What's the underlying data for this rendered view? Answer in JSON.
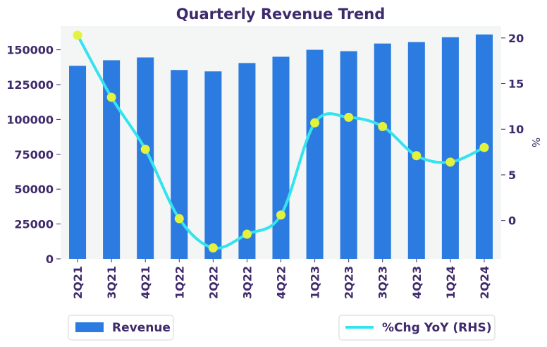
{
  "chart_data": {
    "type": "bar",
    "title": "Quarterly Revenue Trend",
    "categories": [
      "2Q21",
      "3Q21",
      "4Q21",
      "1Q22",
      "2Q22",
      "3Q22",
      "4Q22",
      "1Q23",
      "2Q23",
      "3Q23",
      "4Q23",
      "1Q24",
      "2Q24"
    ],
    "series": [
      {
        "name": "Revenue",
        "type": "bar",
        "axis": "left",
        "values": [
          138500,
          142500,
          144500,
          135500,
          134500,
          140500,
          145000,
          150000,
          149000,
          154500,
          155500,
          159000,
          161000
        ]
      },
      {
        "name": "%Chg YoY (RHS)",
        "type": "line",
        "axis": "right",
        "values": [
          20.3,
          13.5,
          7.8,
          0.2,
          -3.0,
          -1.5,
          0.6,
          10.7,
          11.3,
          10.3,
          7.1,
          6.4,
          8.0
        ]
      }
    ],
    "y_left": {
      "ticks": [
        0,
        25000,
        50000,
        75000,
        100000,
        125000,
        150000
      ],
      "ylim": [
        0,
        167000
      ]
    },
    "y_right": {
      "label": "%",
      "ticks": [
        0,
        5,
        10,
        15,
        20
      ],
      "ylim": [
        -4.2,
        21.3
      ]
    },
    "grid": false,
    "legend": [
      {
        "label": "Revenue",
        "placement": "bottom-left"
      },
      {
        "label": "%Chg YoY (RHS)",
        "placement": "bottom-right"
      }
    ],
    "colors": {
      "bar": "#2b7be0",
      "line": "#33e3ef",
      "marker": "#e2f23d",
      "plot_bg": "#f4f6f6",
      "text": "#3f2a6b"
    }
  }
}
